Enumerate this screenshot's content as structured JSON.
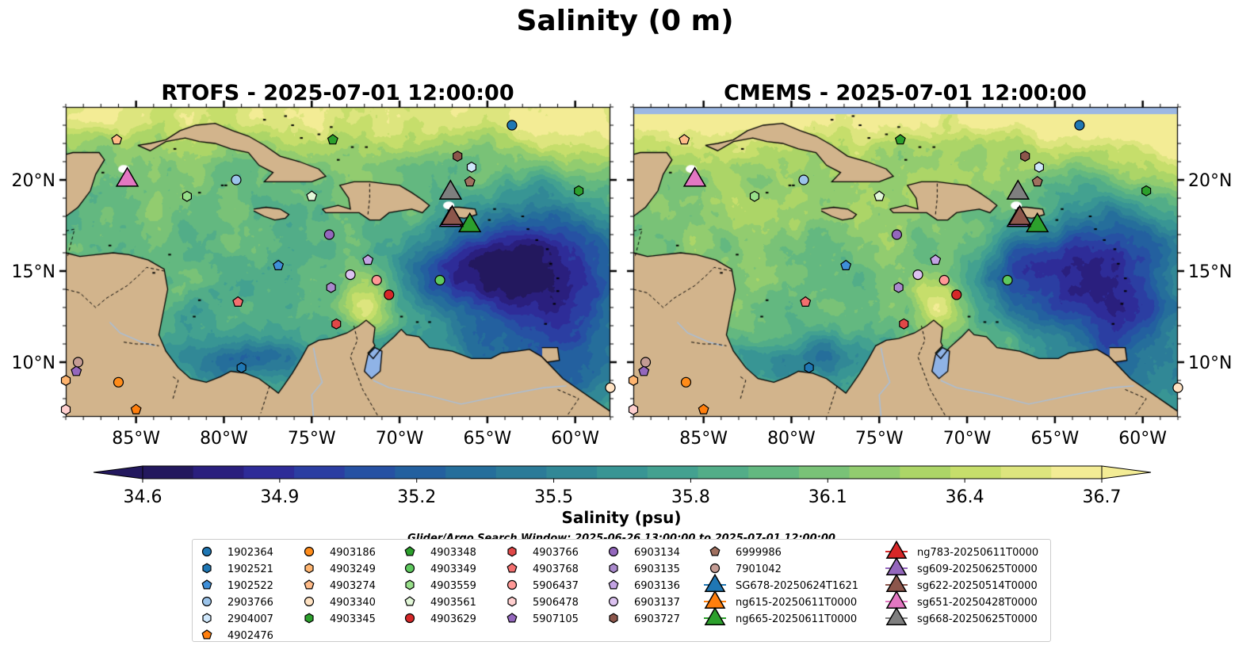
{
  "figure": {
    "title": "Salinity (0 m)",
    "search_window": "Glider/Argo Search Window: 2025-06-26 13:00:00 to 2025-07-01 12:00:00"
  },
  "panels": [
    {
      "title": "RTOFS - 2025-07-01 12:00:00",
      "model": "RTOFS"
    },
    {
      "title": "CMEMS - 2025-07-01 12:00:00",
      "model": "CMEMS"
    }
  ],
  "map": {
    "lon_range": [
      -89,
      -58
    ],
    "lat_range": [
      7,
      24
    ],
    "lon_ticks": [
      {
        "value": -85,
        "label": "85°W"
      },
      {
        "value": -80,
        "label": "80°W"
      },
      {
        "value": -75,
        "label": "75°W"
      },
      {
        "value": -70,
        "label": "70°W"
      },
      {
        "value": -65,
        "label": "65°W"
      },
      {
        "value": -60,
        "label": "60°W"
      }
    ],
    "lat_ticks": [
      {
        "value": 20,
        "label": "20°N"
      },
      {
        "value": 15,
        "label": "15°N"
      },
      {
        "value": 10,
        "label": "10°N"
      }
    ],
    "land_color": "#d2b48c",
    "ocean_nodata_color": "#9cb8e3",
    "lake_color": "#8fb3e6"
  },
  "colorbar": {
    "label": "Salinity (psu)",
    "min": 34.6,
    "max": 36.7,
    "ticks": [
      "34.6",
      "34.9",
      "35.2",
      "35.5",
      "35.8",
      "36.1",
      "36.4",
      "36.7"
    ],
    "colors": [
      "#23185e",
      "#2a1f7e",
      "#2e2c98",
      "#2b3ea2",
      "#2651a3",
      "#23609f",
      "#256e9b",
      "#2b7b98",
      "#318896",
      "#389594",
      "#43a190",
      "#52ad88",
      "#63b880",
      "#79c277",
      "#92cc6f",
      "#acd567",
      "#c6de6b",
      "#dde57e",
      "#f3ec95"
    ]
  },
  "markers": [
    {
      "id": "1902364",
      "shape": "circle",
      "color": "#1f77b4",
      "lon": -63.6,
      "lat": 23.0
    },
    {
      "id": "1902521",
      "shape": "hexagon",
      "color": "#1f77b4",
      "lon": -79.0,
      "lat": 9.7
    },
    {
      "id": "1902522",
      "shape": "pentagon",
      "color": "#3f8fd8",
      "lon": -76.9,
      "lat": 15.3
    },
    {
      "id": "2903766",
      "shape": "circle",
      "color": "#9cc4ea",
      "lon": -79.3,
      "lat": 20.0
    },
    {
      "id": "2904007",
      "shape": "hexagon",
      "color": "#cfe7fb",
      "lon": -65.9,
      "lat": 20.7
    },
    {
      "id": "4902476",
      "shape": "pentagon",
      "color": "#ff7f0e",
      "lon": -85.0,
      "lat": 7.4
    },
    {
      "id": "4903186",
      "shape": "circle",
      "color": "#ff8c1a",
      "lon": -86.0,
      "lat": 8.9
    },
    {
      "id": "4903249",
      "shape": "hexagon",
      "color": "#ffb570",
      "lon": -89.0,
      "lat": 9.0
    },
    {
      "id": "4903274",
      "shape": "pentagon",
      "color": "#ffbb88",
      "lon": -86.1,
      "lat": 22.2
    },
    {
      "id": "4903340",
      "shape": "circle",
      "color": "#ffe2c2",
      "lon": -58.0,
      "lat": 8.6
    },
    {
      "id": "4903345",
      "shape": "hexagon",
      "color": "#2ca02c",
      "lon": -59.8,
      "lat": 19.4
    },
    {
      "id": "4903348",
      "shape": "pentagon",
      "color": "#2ca02c",
      "lon": -73.8,
      "lat": 22.2
    },
    {
      "id": "4903349",
      "shape": "circle",
      "color": "#5ec95e",
      "lon": -67.7,
      "lat": 14.5
    },
    {
      "id": "4903559",
      "shape": "hexagon",
      "color": "#98df8a",
      "lon": -82.1,
      "lat": 19.1
    },
    {
      "id": "4903561",
      "shape": "pentagon",
      "color": "#e2f7d8",
      "lon": -75.0,
      "lat": 19.1
    },
    {
      "id": "4903629",
      "shape": "circle",
      "color": "#d62728",
      "lon": -70.6,
      "lat": 13.7
    },
    {
      "id": "4903766",
      "shape": "hexagon",
      "color": "#e04848",
      "lon": -73.6,
      "lat": 12.1
    },
    {
      "id": "4903768",
      "shape": "pentagon",
      "color": "#f36f6f",
      "lon": -79.2,
      "lat": 13.3
    },
    {
      "id": "5906437",
      "shape": "circle",
      "color": "#ff9896",
      "lon": -71.3,
      "lat": 14.5
    },
    {
      "id": "5906478",
      "shape": "hexagon",
      "color": "#ffcfcf",
      "lon": -89.0,
      "lat": 7.4
    },
    {
      "id": "5907105",
      "shape": "pentagon",
      "color": "#9467bd",
      "lon": -88.4,
      "lat": 9.5
    },
    {
      "id": "6903134",
      "shape": "circle",
      "color": "#9467bd",
      "lon": -74.0,
      "lat": 17.0
    },
    {
      "id": "6903135",
      "shape": "hexagon",
      "color": "#a989cc",
      "lon": -73.9,
      "lat": 14.1
    },
    {
      "id": "6903136",
      "shape": "pentagon",
      "color": "#c3a3e3",
      "lon": -71.8,
      "lat": 15.6
    },
    {
      "id": "6903137",
      "shape": "circle",
      "color": "#dcc2f0",
      "lon": -72.8,
      "lat": 14.8
    },
    {
      "id": "6903727",
      "shape": "hexagon",
      "color": "#8c564b",
      "lon": -66.7,
      "lat": 21.3
    },
    {
      "id": "6999986",
      "shape": "pentagon",
      "color": "#a0705f",
      "lon": -66.0,
      "lat": 19.9
    },
    {
      "id": "7901042",
      "shape": "circle",
      "color": "#c49c94",
      "lon": -88.3,
      "lat": 10.0
    },
    {
      "id": "SG678-20250624T1621",
      "shape": "triangle",
      "color": "#1f77b4",
      "lon": -67.0,
      "lat": 18.0
    },
    {
      "id": "ng615-20250611T0000",
      "shape": "triangle",
      "color": "#ff7f0e",
      "lon": -67.0,
      "lat": 18.0
    },
    {
      "id": "ng665-20250611T0000",
      "shape": "triangle",
      "color": "#2ca02c",
      "lon": -66.0,
      "lat": 17.6
    },
    {
      "id": "ng783-20250611T0000",
      "shape": "triangle",
      "color": "#d62728",
      "lon": -67.0,
      "lat": 17.9
    },
    {
      "id": "sg609-20250625T0000",
      "shape": "triangle",
      "color": "#9467bd",
      "lon": -67.1,
      "lat": 17.9
    },
    {
      "id": "sg622-20250514T0000",
      "shape": "triangle",
      "color": "#8c564b",
      "lon": -67.0,
      "lat": 18.0
    },
    {
      "id": "sg651-20250428T0000",
      "shape": "triangle",
      "color": "#e377c2",
      "lon": -85.5,
      "lat": 20.1
    },
    {
      "id": "sg668-20250625T0000",
      "shape": "triangle",
      "color": "#7f7f7f",
      "lon": -67.1,
      "lat": 19.4
    }
  ]
}
